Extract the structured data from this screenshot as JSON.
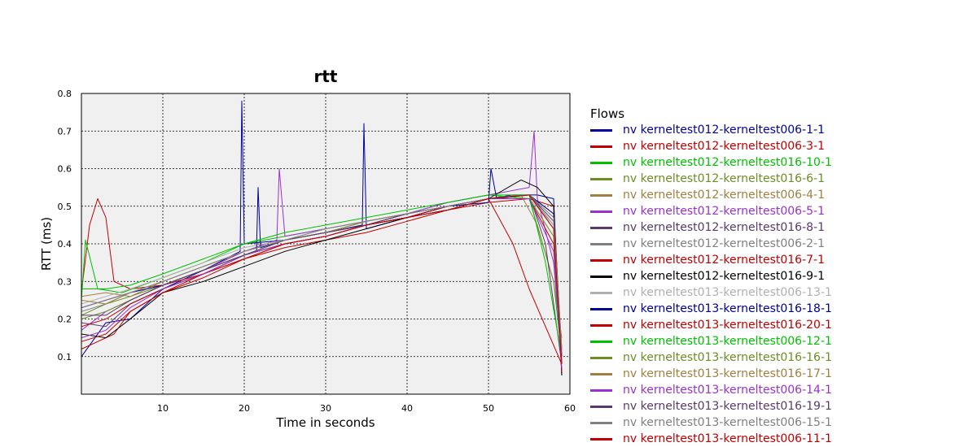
{
  "chart_data": {
    "type": "line",
    "title": "rtt",
    "xlabel": "Time in seconds",
    "ylabel": "RTT (ms)",
    "xlim": [
      0,
      60
    ],
    "ylim": [
      0,
      0.8
    ],
    "xticks": [
      "10",
      "20",
      "30",
      "40",
      "50",
      "60"
    ],
    "yticks": [
      "0.1",
      "0.2",
      "0.3",
      "0.4",
      "0.5",
      "0.6",
      "0.7",
      "0.8"
    ],
    "grid": true,
    "legend_position": "right",
    "legend_title": "Flows",
    "series": [
      {
        "name": "nv kerneltest012-kerneltest006-1-1",
        "color": "#0000a0",
        "x": [
          0,
          3,
          6,
          10,
          15,
          19.5,
          19.7,
          20,
          25,
          30,
          34.5,
          34.7,
          35,
          40,
          45,
          50,
          53,
          56,
          58,
          59
        ],
        "values": [
          0.1,
          0.19,
          0.2,
          0.28,
          0.33,
          0.38,
          0.78,
          0.4,
          0.41,
          0.43,
          0.45,
          0.72,
          0.44,
          0.47,
          0.5,
          0.52,
          0.53,
          0.53,
          0.52,
          0.05
        ]
      },
      {
        "name": "nv kerneltest012-kerneltest006-3-1",
        "color": "#c00000",
        "x": [
          0,
          1,
          2,
          3,
          4,
          6,
          10,
          15,
          20,
          25,
          30,
          35,
          40,
          45,
          50,
          55,
          58,
          59
        ],
        "values": [
          0.27,
          0.45,
          0.52,
          0.47,
          0.3,
          0.28,
          0.29,
          0.32,
          0.36,
          0.39,
          0.41,
          0.43,
          0.46,
          0.49,
          0.51,
          0.52,
          0.5,
          0.1
        ]
      },
      {
        "name": "nv kerneltest012-kerneltest016-10-1",
        "color": "#00c000",
        "x": [
          0,
          0.5,
          2,
          5,
          10,
          15,
          20,
          25,
          30,
          35,
          40,
          45,
          50,
          55,
          58,
          59
        ],
        "values": [
          0.25,
          0.41,
          0.28,
          0.27,
          0.31,
          0.35,
          0.4,
          0.42,
          0.44,
          0.46,
          0.48,
          0.51,
          0.53,
          0.52,
          0.3,
          0.1
        ]
      },
      {
        "name": "nv kerneltest012-kerneltest016-6-1",
        "color": "#6b8e23",
        "x": [
          0,
          3,
          6,
          10,
          15,
          20,
          25,
          30,
          35,
          40,
          45,
          50,
          55,
          58,
          59
        ],
        "values": [
          0.21,
          0.24,
          0.26,
          0.29,
          0.33,
          0.38,
          0.41,
          0.43,
          0.46,
          0.48,
          0.5,
          0.52,
          0.53,
          0.48,
          0.12
        ]
      },
      {
        "name": "nv kerneltest012-kerneltest006-4-1",
        "color": "#a08040",
        "x": [
          0,
          3,
          6,
          10,
          15,
          20,
          25,
          30,
          35,
          40,
          45,
          50,
          54,
          56,
          58,
          59
        ],
        "values": [
          0.26,
          0.27,
          0.26,
          0.3,
          0.34,
          0.38,
          0.41,
          0.43,
          0.45,
          0.48,
          0.5,
          0.52,
          0.53,
          0.45,
          0.3,
          0.15
        ]
      },
      {
        "name": "nv kerneltest012-kerneltest006-5-1",
        "color": "#9932cc",
        "x": [
          0,
          3,
          6,
          10,
          15,
          20,
          24,
          24.3,
          25,
          30,
          35,
          40,
          45,
          50,
          55,
          55.6,
          56,
          58,
          59
        ],
        "values": [
          0.17,
          0.22,
          0.25,
          0.29,
          0.33,
          0.38,
          0.41,
          0.6,
          0.42,
          0.44,
          0.46,
          0.48,
          0.51,
          0.53,
          0.55,
          0.7,
          0.52,
          0.35,
          0.1
        ]
      },
      {
        "name": "nv kerneltest012-kerneltest016-8-1",
        "color": "#5a3a6a",
        "x": [
          0,
          3,
          6,
          10,
          15,
          20,
          25,
          30,
          35,
          40,
          45,
          50,
          55,
          57,
          59
        ],
        "values": [
          0.19,
          0.18,
          0.24,
          0.28,
          0.32,
          0.37,
          0.4,
          0.42,
          0.45,
          0.47,
          0.49,
          0.52,
          0.53,
          0.4,
          0.08
        ]
      },
      {
        "name": "nv kerneltest012-kerneltest006-2-1",
        "color": "#808080",
        "x": [
          0,
          3,
          6,
          10,
          15,
          20,
          25,
          30,
          35,
          40,
          45,
          50,
          55,
          58,
          59
        ],
        "values": [
          0.22,
          0.24,
          0.27,
          0.3,
          0.34,
          0.38,
          0.41,
          0.43,
          0.46,
          0.48,
          0.5,
          0.52,
          0.53,
          0.45,
          0.1
        ]
      },
      {
        "name": "nv kerneltest012-kerneltest016-7-1",
        "color": "#c00000",
        "x": [
          0,
          2,
          4,
          6,
          10,
          15,
          20,
          25,
          30,
          35,
          40,
          45,
          50,
          53,
          55,
          57,
          59
        ],
        "values": [
          0.12,
          0.14,
          0.16,
          0.22,
          0.27,
          0.32,
          0.37,
          0.4,
          0.42,
          0.45,
          0.47,
          0.5,
          0.52,
          0.4,
          0.28,
          0.18,
          0.08
        ]
      },
      {
        "name": "nv kerneltest012-kerneltest016-9-1",
        "color": "#000000",
        "x": [
          0,
          3,
          6,
          10,
          15,
          20,
          25,
          30,
          35,
          40,
          45,
          50,
          54,
          56,
          58,
          59
        ],
        "values": [
          0.16,
          0.15,
          0.2,
          0.27,
          0.3,
          0.34,
          0.38,
          0.41,
          0.44,
          0.47,
          0.49,
          0.52,
          0.57,
          0.55,
          0.5,
          0.05
        ]
      },
      {
        "name": "nv kerneltest013-kerneltest006-13-1",
        "color": "#b0b0b0",
        "x": [
          0,
          3,
          6,
          10,
          15,
          20,
          25,
          30,
          35,
          40,
          45,
          50,
          55,
          58,
          59
        ],
        "values": [
          0.24,
          0.26,
          0.28,
          0.31,
          0.35,
          0.39,
          0.41,
          0.44,
          0.46,
          0.48,
          0.5,
          0.52,
          0.52,
          0.45,
          0.12
        ]
      },
      {
        "name": "nv kerneltest013-kerneltest016-18-1",
        "color": "#000090",
        "x": [
          0,
          3,
          6,
          10,
          15,
          20,
          21.5,
          21.7,
          22,
          25,
          30,
          35,
          40,
          45,
          50,
          50.3,
          51,
          55,
          58,
          59
        ],
        "values": [
          0.23,
          0.25,
          0.27,
          0.29,
          0.33,
          0.37,
          0.38,
          0.55,
          0.39,
          0.41,
          0.43,
          0.45,
          0.47,
          0.5,
          0.51,
          0.6,
          0.52,
          0.53,
          0.48,
          0.08
        ]
      },
      {
        "name": "nv kerneltest013-kerneltest016-20-1",
        "color": "#c00000",
        "x": [
          0,
          3,
          6,
          10,
          15,
          20,
          25,
          30,
          35,
          40,
          45,
          50,
          55,
          58,
          59
        ],
        "values": [
          0.18,
          0.2,
          0.24,
          0.28,
          0.32,
          0.36,
          0.4,
          0.42,
          0.45,
          0.47,
          0.5,
          0.52,
          0.52,
          0.4,
          0.06
        ]
      },
      {
        "name": "nv kerneltest013-kerneltest006-12-1",
        "color": "#00c000",
        "x": [
          0,
          3,
          6,
          10,
          15,
          20,
          25,
          30,
          35,
          40,
          45,
          50,
          55,
          57,
          59
        ],
        "values": [
          0.28,
          0.28,
          0.29,
          0.32,
          0.36,
          0.4,
          0.43,
          0.45,
          0.47,
          0.49,
          0.51,
          0.53,
          0.53,
          0.35,
          0.1
        ]
      },
      {
        "name": "nv kerneltest013-kerneltest016-16-1",
        "color": "#6b8e23",
        "x": [
          0,
          3,
          6,
          10,
          15,
          20,
          25,
          30,
          35,
          40,
          45,
          50,
          55,
          58,
          59
        ],
        "values": [
          0.2,
          0.22,
          0.25,
          0.29,
          0.33,
          0.37,
          0.41,
          0.43,
          0.45,
          0.48,
          0.5,
          0.52,
          0.52,
          0.42,
          0.09
        ]
      },
      {
        "name": "nv kerneltest013-kerneltest016-17-1",
        "color": "#a08040",
        "x": [
          0,
          3,
          6,
          10,
          15,
          20,
          25,
          30,
          35,
          40,
          45,
          50,
          55,
          58,
          59
        ],
        "values": [
          0.25,
          0.24,
          0.27,
          0.3,
          0.34,
          0.38,
          0.41,
          0.43,
          0.46,
          0.48,
          0.5,
          0.52,
          0.53,
          0.44,
          0.12
        ]
      },
      {
        "name": "nv kerneltest013-kerneltest006-14-1",
        "color": "#9932cc",
        "x": [
          0,
          3,
          6,
          10,
          15,
          20,
          25,
          30,
          35,
          40,
          45,
          50,
          55,
          58,
          59
        ],
        "values": [
          0.15,
          0.17,
          0.23,
          0.28,
          0.32,
          0.37,
          0.4,
          0.42,
          0.45,
          0.48,
          0.5,
          0.52,
          0.52,
          0.38,
          0.07
        ]
      },
      {
        "name": "nv kerneltest013-kerneltest016-19-1",
        "color": "#5a3a6a",
        "x": [
          0,
          3,
          6,
          10,
          15,
          20,
          25,
          30,
          35,
          40,
          45,
          50,
          55,
          58,
          59
        ],
        "values": [
          0.21,
          0.21,
          0.25,
          0.29,
          0.33,
          0.37,
          0.41,
          0.43,
          0.45,
          0.48,
          0.5,
          0.52,
          0.53,
          0.46,
          0.1
        ]
      },
      {
        "name": "nv kerneltest013-kerneltest006-15-1",
        "color": "#808080",
        "x": [
          0,
          3,
          6,
          10,
          15,
          20,
          25,
          30,
          35,
          40,
          45,
          50,
          55,
          58,
          59
        ],
        "values": [
          0.23,
          0.25,
          0.27,
          0.3,
          0.34,
          0.38,
          0.41,
          0.44,
          0.46,
          0.48,
          0.5,
          0.52,
          0.53,
          0.47,
          0.11
        ]
      },
      {
        "name": "nv kerneltest013-kerneltest006-11-1",
        "color": "#c00000",
        "x": [
          0,
          3,
          6,
          10,
          15,
          20,
          25,
          30,
          35,
          40,
          45,
          50,
          55,
          58,
          59
        ],
        "values": [
          0.14,
          0.16,
          0.22,
          0.27,
          0.31,
          0.36,
          0.4,
          0.42,
          0.45,
          0.47,
          0.49,
          0.52,
          0.53,
          0.44,
          0.08
        ]
      }
    ]
  }
}
